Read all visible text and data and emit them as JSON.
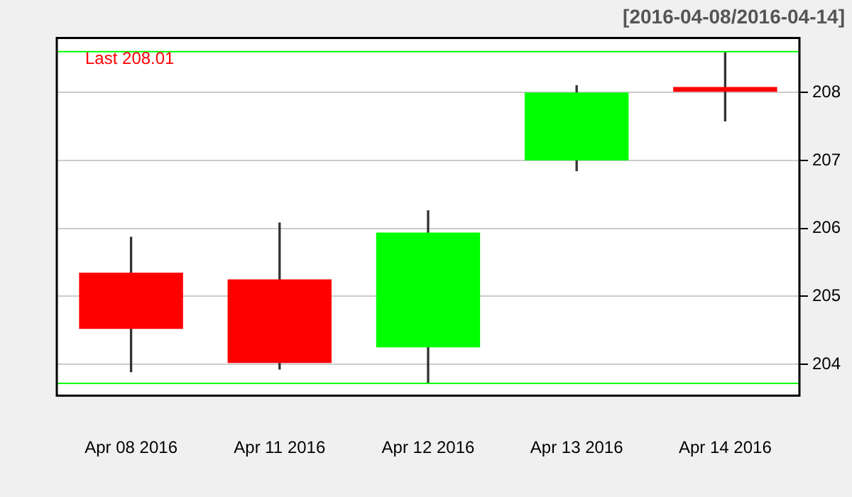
{
  "chart_data": {
    "type": "candlestick",
    "subtitle": "[2016-04-08/2016-04-14]",
    "categories": [
      "Apr 08 2016",
      "Apr 11 2016",
      "Apr 12 2016",
      "Apr 13 2016",
      "Apr 14 2016"
    ],
    "ohlc": [
      [
        205.35,
        205.87,
        203.89,
        204.52
      ],
      [
        205.25,
        206.08,
        203.93,
        204.02
      ],
      [
        204.25,
        206.26,
        203.72,
        205.94
      ],
      [
        207.0,
        208.1,
        206.85,
        208.0
      ],
      [
        208.08,
        208.6,
        207.58,
        208.01
      ]
    ],
    "colors": [
      "#ff0000",
      "#ff0000",
      "#00ff00",
      "#00ff00",
      "#ff0000"
    ],
    "ylim": [
      203.54,
      208.8
    ],
    "yticks": [
      204,
      205,
      206,
      207,
      208
    ],
    "grid": "y",
    "ref_lines": [
      {
        "axis": "y",
        "value": 208.6,
        "color": "#00ff00"
      },
      {
        "axis": "y",
        "value": 203.72,
        "color": "#00ff00"
      }
    ],
    "annotations": [
      "Last 208.01"
    ]
  }
}
